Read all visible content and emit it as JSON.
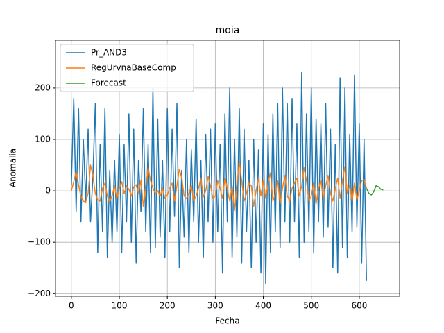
{
  "chart_data": {
    "type": "line",
    "title": "moia",
    "x_label": "Fecha",
    "y_label": "Anomalia",
    "xlim": [
      -33,
      684
    ],
    "ylim": [
      -205,
      293
    ],
    "xticks": [
      0,
      100,
      200,
      300,
      400,
      500,
      600
    ],
    "yticks": [
      {
        "value": -200,
        "label": "−200"
      },
      {
        "value": -100,
        "label": "−100"
      },
      0,
      100,
      200
    ],
    "grid": true,
    "legend": "upper-left",
    "series": [
      {
        "name": "Pr_AND3",
        "color": "#1f77b4",
        "x": [
          0,
          5,
          10,
          15,
          20,
          25,
          30,
          35,
          40,
          45,
          50,
          55,
          60,
          65,
          70,
          75,
          80,
          85,
          90,
          95,
          100,
          105,
          110,
          115,
          120,
          125,
          130,
          135,
          140,
          145,
          150,
          155,
          160,
          165,
          170,
          175,
          180,
          185,
          190,
          195,
          200,
          205,
          210,
          215,
          220,
          225,
          230,
          235,
          240,
          245,
          250,
          255,
          260,
          265,
          270,
          275,
          280,
          285,
          290,
          295,
          300,
          305,
          310,
          315,
          320,
          325,
          330,
          335,
          340,
          345,
          350,
          355,
          360,
          365,
          370,
          375,
          380,
          385,
          390,
          395,
          400,
          405,
          410,
          415,
          420,
          425,
          430,
          435,
          440,
          445,
          450,
          455,
          460,
          465,
          470,
          475,
          480,
          485,
          490,
          495,
          500,
          505,
          510,
          515,
          520,
          525,
          530,
          535,
          540,
          545,
          550,
          555,
          560,
          565,
          570,
          575,
          580,
          585,
          590,
          595,
          600,
          605,
          610,
          615
        ],
        "values": [
          10,
          180,
          -40,
          160,
          -60,
          100,
          -20,
          120,
          -60,
          30,
          170,
          -120,
          90,
          -80,
          160,
          -130,
          40,
          -100,
          60,
          -80,
          110,
          -120,
          90,
          -60,
          150,
          -100,
          120,
          -140,
          60,
          -40,
          160,
          -80,
          90,
          -120,
          200,
          -110,
          140,
          -90,
          60,
          -130,
          160,
          -80,
          120,
          -50,
          170,
          -150,
          40,
          -90,
          100,
          -120,
          80,
          -60,
          140,
          -100,
          60,
          -130,
          110,
          -60,
          120,
          -100,
          130,
          -80,
          90,
          -160,
          150,
          -60,
          200,
          -130,
          100,
          -90,
          160,
          -140,
          120,
          -80,
          60,
          -150,
          100,
          -100,
          80,
          -160,
          130,
          -180,
          110,
          -120,
          150,
          -80,
          170,
          -110,
          200,
          -60,
          170,
          -100,
          180,
          -60,
          130,
          -130,
          230,
          -100,
          150,
          -80,
          200,
          -120,
          140,
          -60,
          130,
          -90,
          170,
          -70,
          120,
          -150,
          90,
          -160,
          220,
          -110,
          200,
          -130,
          110,
          -80,
          225,
          -70,
          130,
          -140,
          100,
          -175
        ]
      },
      {
        "name": "RegUrvnaBaseComp",
        "color": "#ff7f0e",
        "x": [
          0,
          5,
          10,
          15,
          20,
          25,
          30,
          35,
          40,
          45,
          50,
          55,
          60,
          65,
          70,
          75,
          80,
          85,
          90,
          95,
          100,
          105,
          110,
          115,
          120,
          125,
          130,
          135,
          140,
          145,
          150,
          155,
          160,
          165,
          170,
          175,
          180,
          185,
          190,
          195,
          200,
          205,
          210,
          215,
          220,
          225,
          230,
          235,
          240,
          245,
          250,
          255,
          260,
          265,
          270,
          275,
          280,
          285,
          290,
          295,
          300,
          305,
          310,
          315,
          320,
          325,
          330,
          335,
          340,
          345,
          350,
          355,
          360,
          365,
          370,
          375,
          380,
          385,
          390,
          395,
          400,
          405,
          410,
          415,
          420,
          425,
          430,
          435,
          440,
          445,
          450,
          455,
          460,
          465,
          470,
          475,
          480,
          485,
          490,
          495,
          500,
          505,
          510,
          515,
          520,
          525,
          530,
          535,
          540,
          545,
          550,
          555,
          560,
          565,
          570,
          575,
          580,
          585,
          590,
          595,
          600,
          605,
          610,
          615
        ],
        "values": [
          0,
          18,
          38,
          12,
          -12,
          -20,
          -22,
          -5,
          50,
          30,
          -5,
          -18,
          -20,
          5,
          15,
          -10,
          -22,
          -10,
          10,
          -15,
          5,
          18,
          -5,
          10,
          3,
          -10,
          8,
          12,
          -5,
          20,
          -30,
          5,
          45,
          20,
          5,
          -5,
          0,
          -10,
          5,
          -15,
          -8,
          5,
          15,
          -20,
          10,
          42,
          25,
          -10,
          -15,
          -5,
          10,
          -20,
          -10,
          5,
          25,
          -12,
          0,
          28,
          10,
          -15,
          -10,
          20,
          5,
          -15,
          25,
          5,
          -20,
          10,
          -38,
          10,
          57,
          20,
          -20,
          -5,
          15,
          10,
          -30,
          0,
          25,
          -10,
          20,
          -15,
          15,
          35,
          -20,
          -5,
          20,
          -25,
          5,
          30,
          -10,
          -20,
          5,
          15,
          25,
          -10,
          10,
          45,
          20,
          -20,
          -10,
          15,
          -25,
          5,
          20,
          -15,
          10,
          30,
          -5,
          -20,
          5,
          25,
          -15,
          20,
          47,
          -5,
          10,
          -20,
          15,
          -18,
          0,
          20,
          22,
          5
        ]
      },
      {
        "name": "Forecast",
        "color": "#2ca02c",
        "x": [
          615,
          620,
          625,
          630,
          635,
          640,
          645,
          650
        ],
        "values": [
          5,
          -5,
          -8,
          -2,
          10,
          8,
          3,
          2
        ]
      }
    ]
  }
}
